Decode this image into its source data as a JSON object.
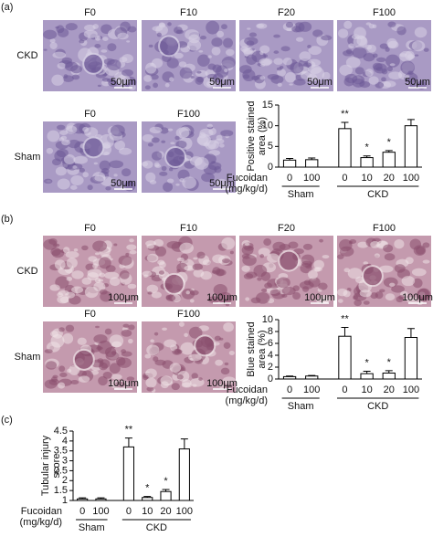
{
  "figure": {
    "panels": [
      {
        "label": "(a)",
        "scale_bar": "50μm",
        "rows": [
          {
            "label": "CKD",
            "images": [
              "F0",
              "F10",
              "F20",
              "F100"
            ]
          },
          {
            "label": "Sham",
            "images": [
              "F0",
              "F100"
            ]
          }
        ]
      },
      {
        "label": "(b)",
        "scale_bar": "100μm",
        "rows": [
          {
            "label": "CKD",
            "images": [
              "F0",
              "F10",
              "F20",
              "F100"
            ]
          },
          {
            "label": "Sham",
            "images": [
              "F0",
              "F100"
            ]
          }
        ]
      },
      {
        "label": "(c)"
      }
    ]
  },
  "chart_data": [
    {
      "type": "bar",
      "y_label": [
        "Positive stained",
        "area (%)"
      ],
      "x_label": [
        "Fucoidan",
        "(mg/kg/d)"
      ],
      "categories": [
        "0",
        "100",
        "0",
        "10",
        "20",
        "100"
      ],
      "groups": [
        "Sham",
        "CKD"
      ],
      "values": [
        1.7,
        1.8,
        9.3,
        2.3,
        3.6,
        10.0
      ],
      "errors": [
        0.4,
        0.4,
        1.5,
        0.4,
        0.4,
        1.5
      ],
      "significance": [
        null,
        null,
        "**",
        "*",
        "*",
        null
      ],
      "ylim": [
        0,
        15
      ],
      "yticks": [
        0,
        5,
        10,
        15
      ],
      "color": "#ffffff"
    },
    {
      "type": "bar",
      "y_label": [
        "Blue stained",
        "area (%)"
      ],
      "x_label": [
        "Fucoidan",
        "(mg/kg/d)"
      ],
      "categories": [
        "0",
        "100",
        "0",
        "10",
        "20",
        "100"
      ],
      "groups": [
        "Sham",
        "CKD"
      ],
      "values": [
        0.4,
        0.5,
        7.2,
        0.9,
        1.0,
        7.0
      ],
      "errors": [
        0.1,
        0.1,
        1.5,
        0.4,
        0.4,
        1.5
      ],
      "significance": [
        null,
        null,
        "**",
        "*",
        "*",
        null
      ],
      "ylim": [
        0,
        10
      ],
      "yticks": [
        0,
        2,
        4,
        6,
        8,
        10
      ],
      "color": "#ffffff"
    },
    {
      "type": "bar",
      "y_label": [
        "Tubular injury",
        "score"
      ],
      "x_label": [
        "Fucoidan",
        "(mg/kg/d)"
      ],
      "categories": [
        "0",
        "100",
        "0",
        "10",
        "20",
        "100"
      ],
      "groups": [
        "Sham",
        "CKD"
      ],
      "values": [
        1.08,
        1.08,
        3.7,
        1.15,
        1.45,
        3.6
      ],
      "errors": [
        0.05,
        0.05,
        0.45,
        0.05,
        0.1,
        0.5
      ],
      "significance": [
        null,
        null,
        "**",
        "*",
        "*",
        null
      ],
      "ylim": [
        1,
        4.5
      ],
      "yticks": [
        1,
        1.5,
        2,
        2.5,
        3,
        3.5,
        4,
        4.5
      ],
      "color": "#ffffff"
    }
  ]
}
